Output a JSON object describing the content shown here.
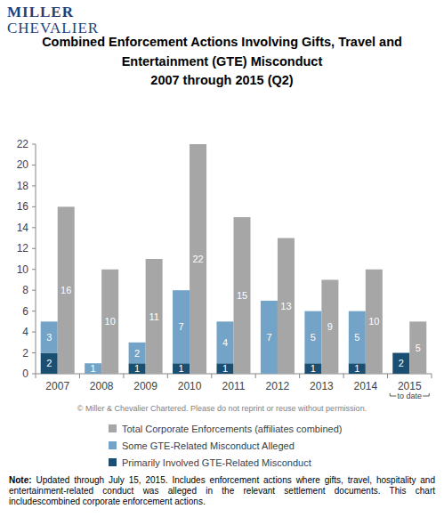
{
  "chart_data": {
    "type": "bar",
    "logo": [
      "MILLER",
      "CHEVALIER"
    ],
    "title": "Combined Enforcement Actions Involving Gifts, Travel and Entertainment (GTE) Misconduct",
    "subtitle": "2007 through 2015 (Q2)",
    "categories": [
      "2007",
      "2008",
      "2009",
      "2010",
      "2011",
      "2012",
      "2013",
      "2014",
      "2015"
    ],
    "series": [
      {
        "name": "Primarily Involved GTE-Related Misconduct",
        "color": "#1b4f72",
        "type": "stacked_bar",
        "values": [
          2,
          0,
          1,
          1,
          1,
          0,
          1,
          1,
          2
        ]
      },
      {
        "name": "Some GTE-Related Misconduct Alleged",
        "color": "#73a3c6",
        "type": "stacked_bar",
        "values": [
          3,
          1,
          2,
          7,
          4,
          7,
          5,
          5,
          0
        ]
      },
      {
        "name": "Total Corporate Enforcements (affiliates combined)",
        "color": "#a6a6a6",
        "type": "bar",
        "values": [
          16,
          10,
          11,
          22,
          15,
          13,
          9,
          10,
          5
        ]
      }
    ],
    "ylim": [
      0,
      22
    ],
    "yticks": [
      0,
      2,
      4,
      6,
      8,
      10,
      12,
      14,
      16,
      18,
      20,
      22
    ],
    "grid": false,
    "legend": "bottom",
    "data_labels": true,
    "annotations": [
      {
        "text": "to date",
        "x": "2015"
      }
    ],
    "copyright": "© Miller & Chevalier Chartered. Please do not reprint or reuse without permission.",
    "note": {
      "label": "Note:",
      "text": "Updated through July 15, 2015. Includes enforcement actions where gifts, travel, hospitality and entertainment-related conduct was alleged in the relevant settlement documents. This chart includescombined corporate enforcement actions."
    }
  }
}
